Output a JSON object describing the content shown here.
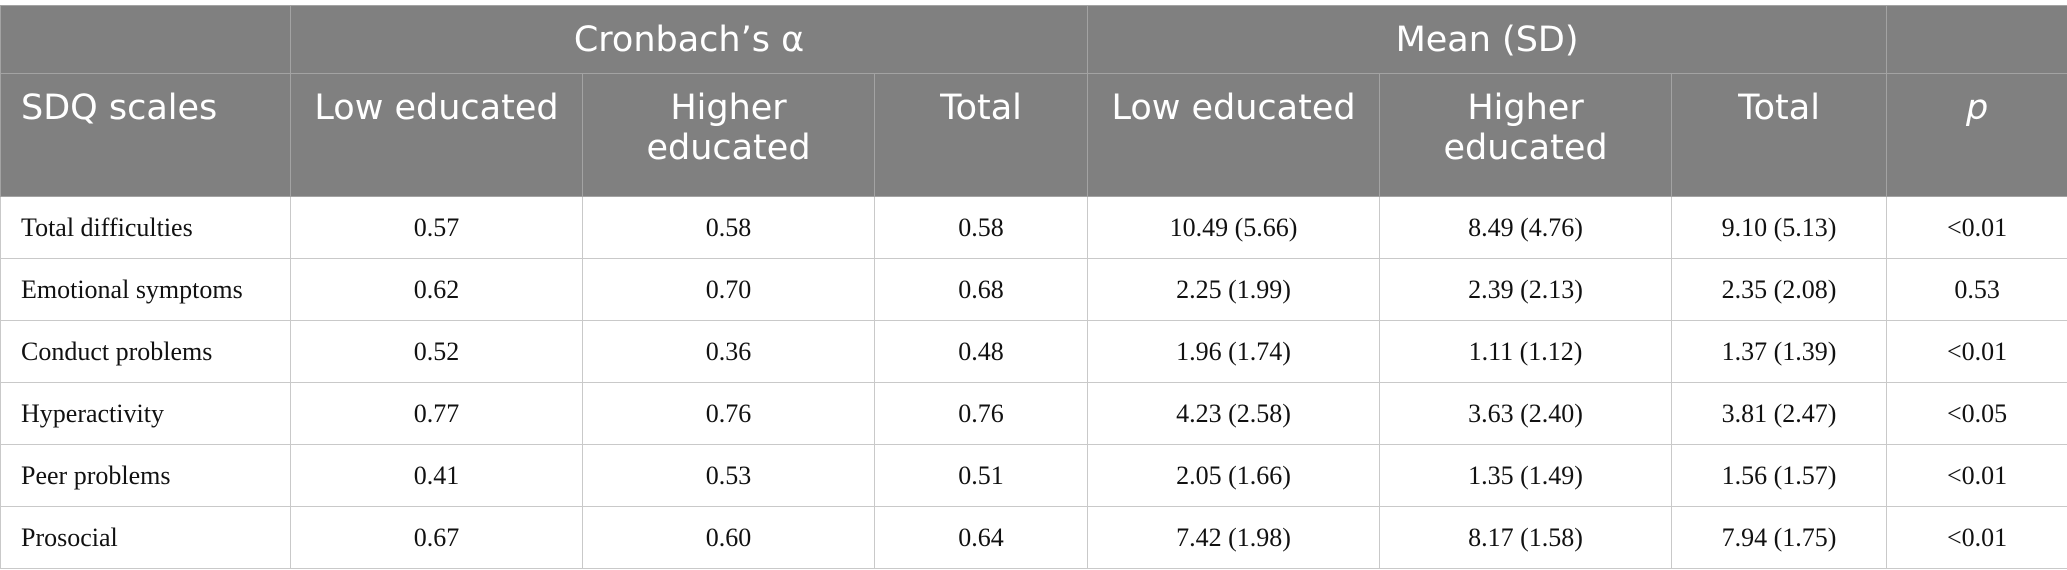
{
  "header": {
    "group_row": [
      "",
      "Cronbach’s α",
      "Mean (SD)",
      ""
    ],
    "columns": [
      "SDQ scales",
      "Low educated",
      "Higher educated",
      "Total",
      "Low educated",
      "Higher educated",
      "Total",
      "p"
    ]
  },
  "rows": [
    {
      "scale": "Total difficulties",
      "alpha_low": "0.57",
      "alpha_high": "0.58",
      "alpha_total": "0.58",
      "mean_low": "10.49 (5.66)",
      "mean_high": "8.49 (4.76)",
      "mean_total": "9.10 (5.13)",
      "p": "<0.01"
    },
    {
      "scale": "Emotional symptoms",
      "alpha_low": "0.62",
      "alpha_high": "0.70",
      "alpha_total": "0.68",
      "mean_low": "2.25 (1.99)",
      "mean_high": "2.39 (2.13)",
      "mean_total": "2.35 (2.08)",
      "p": "0.53"
    },
    {
      "scale": "Conduct problems",
      "alpha_low": "0.52",
      "alpha_high": "0.36",
      "alpha_total": "0.48",
      "mean_low": "1.96 (1.74)",
      "mean_high": "1.11 (1.12)",
      "mean_total": "1.37 (1.39)",
      "p": "<0.01"
    },
    {
      "scale": "Hyperactivity",
      "alpha_low": "0.77",
      "alpha_high": "0.76",
      "alpha_total": "0.76",
      "mean_low": "4.23 (2.58)",
      "mean_high": "3.63 (2.40)",
      "mean_total": "3.81 (2.47)",
      "p": "<0.05"
    },
    {
      "scale": "Peer problems",
      "alpha_low": "0.41",
      "alpha_high": "0.53",
      "alpha_total": "0.51",
      "mean_low": "2.05 (1.66)",
      "mean_high": "1.35 (1.49)",
      "mean_total": "1.56 (1.57)",
      "p": "<0.01"
    },
    {
      "scale": "Prosocial",
      "alpha_low": "0.67",
      "alpha_high": "0.60",
      "alpha_total": "0.64",
      "mean_low": "7.42 (1.98)",
      "mean_high": "8.17 (1.58)",
      "mean_total": "7.94 (1.75)",
      "p": "<0.01"
    }
  ]
}
